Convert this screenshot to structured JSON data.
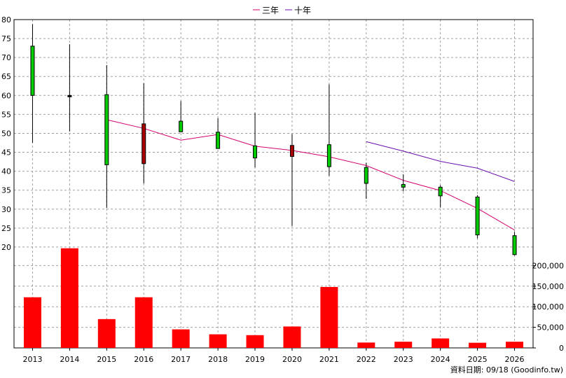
{
  "chart_data": {
    "type": "candlestick",
    "categories": [
      "2013",
      "2014",
      "2015",
      "2016",
      "2017",
      "2018",
      "2019",
      "2020",
      "2021",
      "2022",
      "2023",
      "2024",
      "2025",
      "2026"
    ],
    "price_axis": {
      "min": 15,
      "max": 80,
      "ticks": [
        20,
        25,
        30,
        35,
        40,
        45,
        50,
        55,
        60,
        65,
        70,
        75,
        80
      ]
    },
    "volume_axis": {
      "min": 0,
      "max": 250000,
      "ticks": [
        0,
        50000,
        100000,
        150000,
        200000
      ],
      "tick_labels": [
        "0",
        "50,000",
        "100,000",
        "150,000",
        "200,000"
      ]
    },
    "candles": [
      {
        "year": "2013",
        "open": 60,
        "close": 73,
        "high": 78.8,
        "low": 47.5
      },
      {
        "year": "2014",
        "open": 60,
        "close": 60,
        "high": 73.5,
        "low": 50.5
      },
      {
        "year": "2015",
        "open": 41.7,
        "close": 60.2,
        "high": 68,
        "low": 30.3
      },
      {
        "year": "2016",
        "open": 52.5,
        "close": 42,
        "high": 63.2,
        "low": 36.8
      },
      {
        "year": "2017",
        "open": 50.4,
        "close": 53.2,
        "high": 58.5,
        "low": 50.4
      },
      {
        "year": "2018",
        "open": 46,
        "close": 50.3,
        "high": 54,
        "low": 46
      },
      {
        "year": "2019",
        "open": 43.5,
        "close": 46.7,
        "high": 55.4,
        "low": 41
      },
      {
        "year": "2020",
        "open": 46.8,
        "close": 43.9,
        "high": 49.8,
        "low": 25.6
      },
      {
        "year": "2021",
        "open": 41.2,
        "close": 47,
        "high": 62.9,
        "low": 38.8
      },
      {
        "year": "2022",
        "open": 36.8,
        "close": 41,
        "high": 42.2,
        "low": 32.7
      },
      {
        "year": "2023",
        "open": 35.8,
        "close": 36.5,
        "high": 39.2,
        "low": 34.7
      },
      {
        "year": "2024",
        "open": 33.5,
        "close": 35.8,
        "high": 36.3,
        "low": 30.4
      },
      {
        "year": "2025",
        "open": 23.2,
        "close": 33.2,
        "high": 33.7,
        "low": 22.3
      },
      {
        "year": "2026",
        "open": 18,
        "close": 23,
        "high": 24,
        "low": 17.8
      }
    ],
    "volumes": [
      123000,
      242000,
      70000,
      123000,
      45000,
      33000,
      31000,
      52000,
      148000,
      13000,
      15000,
      23000,
      12500,
      15000
    ],
    "series": [
      {
        "name": "三年",
        "color": "#d4006e",
        "points": [
          {
            "x": "2015",
            "y": 53.6
          },
          {
            "x": "2016",
            "y": 51.3
          },
          {
            "x": "2017",
            "y": 48.2
          },
          {
            "x": "2018",
            "y": 49.7
          },
          {
            "x": "2019",
            "y": 46.6
          },
          {
            "x": "2020",
            "y": 45.5
          },
          {
            "x": "2021",
            "y": 43.8
          },
          {
            "x": "2022",
            "y": 41.5
          },
          {
            "x": "2023",
            "y": 37.6
          },
          {
            "x": "2024",
            "y": 34.9
          },
          {
            "x": "2025",
            "y": 30.2
          },
          {
            "x": "2026",
            "y": 24.5
          }
        ]
      },
      {
        "name": "十年",
        "color": "#6a0dad",
        "points": [
          {
            "x": "2022",
            "y": 47.8
          },
          {
            "x": "2023",
            "y": 45.3
          },
          {
            "x": "2024",
            "y": 42.6
          },
          {
            "x": "2025",
            "y": 40.8
          },
          {
            "x": "2026",
            "y": 37.3
          }
        ]
      }
    ],
    "colors": {
      "up": "#00cc00",
      "down": "#aa0000",
      "volume": "#ff0000",
      "grid": "#a0a0a0"
    },
    "footer": "資料日期: 09/18  (Goodinfo.tw)"
  }
}
